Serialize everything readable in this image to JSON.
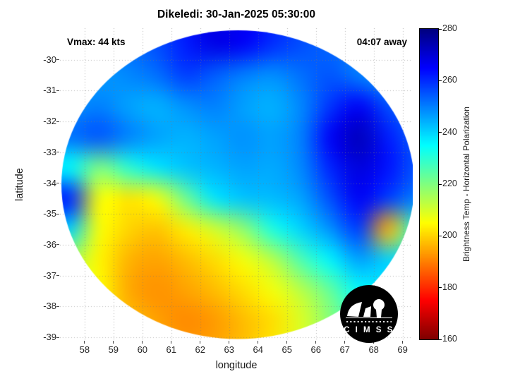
{
  "chart_data": {
    "type": "heatmap",
    "title": "Dikeledi: 30-Jan-2025 05:30:00",
    "xlabel": "longitude",
    "ylabel": "latitude",
    "xlim": [
      57.15,
      69.35
    ],
    "ylim": [
      -39.11,
      -28.98
    ],
    "xticks": [
      58,
      59,
      60,
      61,
      62,
      63,
      64,
      65,
      66,
      67,
      68,
      69
    ],
    "yticks": [
      -30,
      -31,
      -32,
      -33,
      -34,
      -35,
      -36,
      -37,
      -38,
      -39
    ],
    "grid": true,
    "annotations": [
      {
        "id": "vmax",
        "text": "Vmax: 44 kts",
        "position": "top-left"
      },
      {
        "id": "eta",
        "text": "04:07 away",
        "position": "top-right"
      }
    ],
    "colorbar": {
      "label": "Brightness Temp - Horizontal Polarization",
      "min": 160,
      "max": 280,
      "ticks": [
        280,
        260,
        240,
        220,
        200,
        180,
        160
      ],
      "colormap": "jet",
      "note": "280 K = dark blue (top of bar), 160 K = dark red (bottom)"
    },
    "swath_ellipse": {
      "center_lon": 63.3,
      "center_lat": -34.05,
      "semi_lon": 6.1,
      "semi_lat": 5.0
    },
    "field": {
      "units": "K",
      "lons": [
        57.5,
        58.5,
        59.5,
        60.5,
        61.5,
        62.5,
        63.5,
        64.5,
        65.5,
        66.5,
        67.5,
        68.5,
        69.5
      ],
      "lats": [
        -29.5,
        -30.5,
        -31.5,
        -32.5,
        -33.5,
        -34.5,
        -35.5,
        -36.5,
        -37.5,
        -38.5,
        -39.5
      ],
      "values": [
        [
          250,
          250,
          252,
          256,
          262,
          268,
          266,
          260,
          256,
          253,
          251,
          249,
          247
        ],
        [
          246,
          247,
          249,
          252,
          258,
          254,
          250,
          248,
          252,
          255,
          250,
          246,
          244
        ],
        [
          248,
          250,
          246,
          244,
          248,
          250,
          246,
          244,
          249,
          259,
          266,
          256,
          250
        ],
        [
          252,
          255,
          250,
          246,
          244,
          246,
          248,
          246,
          250,
          266,
          273,
          262,
          254
        ],
        [
          235,
          220,
          230,
          238,
          242,
          244,
          246,
          245,
          249,
          261,
          269,
          263,
          255
        ],
        [
          262,
          206,
          202,
          206,
          222,
          238,
          242,
          243,
          246,
          256,
          266,
          258,
          250
        ],
        [
          240,
          206,
          200,
          198,
          203,
          210,
          218,
          232,
          240,
          248,
          258,
          196,
          232
        ],
        [
          215,
          204,
          196,
          194,
          197,
          201,
          206,
          213,
          226,
          236,
          246,
          240,
          238
        ],
        [
          210,
          205,
          195,
          192,
          194,
          197,
          201,
          206,
          213,
          223,
          235,
          238,
          240
        ],
        [
          206,
          202,
          198,
          194,
          191,
          193,
          197,
          201,
          209,
          219,
          228,
          234,
          238
        ],
        [
          205,
          202,
          200,
          197,
          194,
          195,
          198,
          203,
          211,
          219,
          226,
          232,
          236
        ]
      ]
    }
  },
  "logo": {
    "text": "C I M S S"
  }
}
